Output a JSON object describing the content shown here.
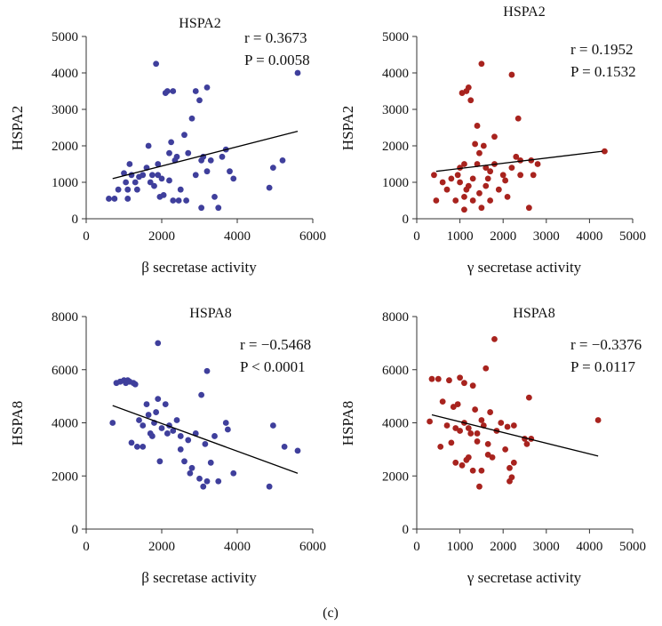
{
  "figure_label": "(c)",
  "chart_data": [
    {
      "type": "scatter",
      "title": "HSPA2",
      "xlabel": "β secretase activity",
      "ylabel": "HSPA2",
      "xlim": [
        0,
        6000
      ],
      "ylim": [
        0,
        5000
      ],
      "xticks": [
        "0",
        "2000",
        "4000",
        "6000"
      ],
      "yticks": [
        "0",
        "1000",
        "2000",
        "3000",
        "4000",
        "5000"
      ],
      "stats": {
        "r": "r = 0.3673",
        "p": "P = 0.0058"
      },
      "color": "#3f3f9c",
      "trendline": {
        "x": [
          700,
          5600
        ],
        "y": [
          1100,
          2400
        ]
      },
      "points": [
        [
          600,
          550
        ],
        [
          750,
          550
        ],
        [
          850,
          800
        ],
        [
          1000,
          1250
        ],
        [
          1050,
          1000
        ],
        [
          1100,
          550
        ],
        [
          1100,
          800
        ],
        [
          1150,
          1500
        ],
        [
          1200,
          1200
        ],
        [
          1300,
          1000
        ],
        [
          1350,
          800
        ],
        [
          1400,
          1150
        ],
        [
          1500,
          1200
        ],
        [
          1600,
          1400
        ],
        [
          1650,
          2000
        ],
        [
          1700,
          1000
        ],
        [
          1750,
          1200
        ],
        [
          1800,
          900
        ],
        [
          1850,
          4250
        ],
        [
          1900,
          1200
        ],
        [
          1900,
          1500
        ],
        [
          1950,
          600
        ],
        [
          2000,
          1100
        ],
        [
          2050,
          650
        ],
        [
          2100,
          3450
        ],
        [
          2150,
          3500
        ],
        [
          2200,
          1050
        ],
        [
          2200,
          1800
        ],
        [
          2250,
          2100
        ],
        [
          2300,
          3500
        ],
        [
          2350,
          1600
        ],
        [
          2400,
          1700
        ],
        [
          2450,
          500
        ],
        [
          2500,
          800
        ],
        [
          2600,
          2300
        ],
        [
          2650,
          500
        ],
        [
          2700,
          1800
        ],
        [
          2800,
          2750
        ],
        [
          2900,
          1200
        ],
        [
          2900,
          3500
        ],
        [
          3000,
          3250
        ],
        [
          3050,
          1600
        ],
        [
          3100,
          1700
        ],
        [
          3200,
          1300
        ],
        [
          3200,
          3600
        ],
        [
          3300,
          1600
        ],
        [
          3400,
          600
        ],
        [
          3500,
          300
        ],
        [
          3600,
          1700
        ],
        [
          3700,
          1900
        ],
        [
          3800,
          1300
        ],
        [
          3900,
          1100
        ],
        [
          4850,
          850
        ],
        [
          4950,
          1400
        ],
        [
          5200,
          1600
        ],
        [
          5600,
          4000
        ],
        [
          3050,
          300
        ],
        [
          2300,
          500
        ]
      ]
    },
    {
      "type": "scatter",
      "title": "HSPA2",
      "xlabel": "γ secretase activity",
      "ylabel": "HSPA2",
      "xlim": [
        0,
        5000
      ],
      "ylim": [
        0,
        5000
      ],
      "xticks": [
        "0",
        "1000",
        "2000",
        "3000",
        "4000",
        "5000"
      ],
      "yticks": [
        "0",
        "1000",
        "2000",
        "3000",
        "4000",
        "5000"
      ],
      "stats": {
        "r": "r = 0.1952",
        "p": "P = 0.1532"
      },
      "color": "#a8231e",
      "trendline": {
        "x": [
          450,
          4300
        ],
        "y": [
          1300,
          1850
        ]
      },
      "points": [
        [
          400,
          1200
        ],
        [
          450,
          500
        ],
        [
          600,
          1000
        ],
        [
          700,
          800
        ],
        [
          800,
          1100
        ],
        [
          900,
          500
        ],
        [
          950,
          1200
        ],
        [
          1000,
          1000
        ],
        [
          1000,
          1400
        ],
        [
          1050,
          3450
        ],
        [
          1100,
          1500
        ],
        [
          1100,
          600
        ],
        [
          1150,
          3500
        ],
        [
          1150,
          800
        ],
        [
          1200,
          900
        ],
        [
          1200,
          3600
        ],
        [
          1250,
          3250
        ],
        [
          1300,
          1100
        ],
        [
          1300,
          500
        ],
        [
          1350,
          2050
        ],
        [
          1400,
          1500
        ],
        [
          1400,
          2550
        ],
        [
          1450,
          700
        ],
        [
          1450,
          1800
        ],
        [
          1500,
          4250
        ],
        [
          1500,
          300
        ],
        [
          1550,
          2000
        ],
        [
          1600,
          1400
        ],
        [
          1600,
          900
        ],
        [
          1650,
          1100
        ],
        [
          1700,
          1300
        ],
        [
          1700,
          500
        ],
        [
          1800,
          1500
        ],
        [
          1800,
          2250
        ],
        [
          1900,
          800
        ],
        [
          2000,
          1200
        ],
        [
          2100,
          600
        ],
        [
          2200,
          3950
        ],
        [
          2200,
          1400
        ],
        [
          2300,
          1700
        ],
        [
          2350,
          2750
        ],
        [
          2400,
          1200
        ],
        [
          2400,
          1600
        ],
        [
          2600,
          300
        ],
        [
          2650,
          1600
        ],
        [
          2700,
          1200
        ],
        [
          2800,
          1500
        ],
        [
          4350,
          1850
        ],
        [
          1100,
          250
        ],
        [
          2050,
          1050
        ]
      ]
    },
    {
      "type": "scatter",
      "title": "HSPA8",
      "xlabel": "β secretase activity",
      "ylabel": "HSPA8",
      "xlim": [
        0,
        6000
      ],
      "ylim": [
        0,
        8000
      ],
      "xticks": [
        "0",
        "2000",
        "4000",
        "6000"
      ],
      "yticks": [
        "0",
        "2000",
        "4000",
        "6000",
        "8000"
      ],
      "stats": {
        "r": "r = −0.5468",
        "p": "P < 0.0001"
      },
      "color": "#3f3f9c",
      "trendline": {
        "x": [
          700,
          5600
        ],
        "y": [
          4650,
          2100
        ]
      },
      "points": [
        [
          700,
          4000
        ],
        [
          800,
          5500
        ],
        [
          900,
          5550
        ],
        [
          1000,
          5600
        ],
        [
          1050,
          5500
        ],
        [
          1100,
          5600
        ],
        [
          1150,
          5550
        ],
        [
          1200,
          3250
        ],
        [
          1250,
          5500
        ],
        [
          1300,
          5450
        ],
        [
          1350,
          3100
        ],
        [
          1400,
          4100
        ],
        [
          1500,
          3900
        ],
        [
          1600,
          4700
        ],
        [
          1650,
          4300
        ],
        [
          1700,
          3600
        ],
        [
          1750,
          3500
        ],
        [
          1800,
          4000
        ],
        [
          1850,
          4400
        ],
        [
          1900,
          7000
        ],
        [
          1900,
          4900
        ],
        [
          1950,
          2550
        ],
        [
          2000,
          3800
        ],
        [
          2100,
          4700
        ],
        [
          2150,
          3600
        ],
        [
          2200,
          3900
        ],
        [
          2300,
          3700
        ],
        [
          2400,
          4100
        ],
        [
          2500,
          3500
        ],
        [
          2600,
          2550
        ],
        [
          2700,
          3350
        ],
        [
          2750,
          2100
        ],
        [
          2800,
          2300
        ],
        [
          2900,
          3600
        ],
        [
          3000,
          1900
        ],
        [
          3050,
          5050
        ],
        [
          3100,
          1600
        ],
        [
          3150,
          3200
        ],
        [
          3200,
          5950
        ],
        [
          3300,
          2500
        ],
        [
          3400,
          3500
        ],
        [
          3500,
          1800
        ],
        [
          3700,
          4000
        ],
        [
          3750,
          3750
        ],
        [
          3900,
          2100
        ],
        [
          4850,
          1600
        ],
        [
          4950,
          3900
        ],
        [
          5250,
          3100
        ],
        [
          5600,
          2950
        ],
        [
          3200,
          1800
        ],
        [
          2500,
          3000
        ],
        [
          1500,
          3100
        ]
      ]
    },
    {
      "type": "scatter",
      "title": "HSPA8",
      "xlabel": "γ secretase activity",
      "ylabel": "HSPA8",
      "xlim": [
        0,
        5000
      ],
      "ylim": [
        0,
        8000
      ],
      "xticks": [
        "0",
        "1000",
        "2000",
        "3000",
        "4000",
        "5000"
      ],
      "yticks": [
        "0",
        "2000",
        "4000",
        "6000",
        "8000"
      ],
      "stats": {
        "r": "r = −0.3376",
        "p": "P = 0.0117"
      },
      "color": "#a8231e",
      "trendline": {
        "x": [
          350,
          4200
        ],
        "y": [
          4300,
          2750
        ]
      },
      "points": [
        [
          300,
          4050
        ],
        [
          350,
          5650
        ],
        [
          500,
          5650
        ],
        [
          550,
          3100
        ],
        [
          600,
          4800
        ],
        [
          700,
          3900
        ],
        [
          750,
          5600
        ],
        [
          800,
          3250
        ],
        [
          850,
          4600
        ],
        [
          900,
          3800
        ],
        [
          950,
          4700
        ],
        [
          1000,
          5700
        ],
        [
          1000,
          3700
        ],
        [
          1050,
          2400
        ],
        [
          1100,
          5500
        ],
        [
          1100,
          4000
        ],
        [
          1150,
          2600
        ],
        [
          1200,
          3800
        ],
        [
          1250,
          3600
        ],
        [
          1300,
          5400
        ],
        [
          1300,
          2200
        ],
        [
          1350,
          4500
        ],
        [
          1400,
          3300
        ],
        [
          1400,
          3600
        ],
        [
          1450,
          1600
        ],
        [
          1500,
          4100
        ],
        [
          1500,
          2200
        ],
        [
          1550,
          3900
        ],
        [
          1600,
          6050
        ],
        [
          1650,
          3200
        ],
        [
          1700,
          4400
        ],
        [
          1750,
          2700
        ],
        [
          1800,
          7150
        ],
        [
          1850,
          3700
        ],
        [
          1950,
          4000
        ],
        [
          2050,
          3000
        ],
        [
          2100,
          3850
        ],
        [
          2150,
          1800
        ],
        [
          2150,
          2300
        ],
        [
          2200,
          1950
        ],
        [
          2250,
          2500
        ],
        [
          2250,
          3900
        ],
        [
          2500,
          3400
        ],
        [
          2550,
          3200
        ],
        [
          2600,
          4950
        ],
        [
          2650,
          3400
        ],
        [
          4200,
          4100
        ],
        [
          900,
          2500
        ],
        [
          1200,
          2700
        ],
        [
          1650,
          2800
        ]
      ]
    }
  ]
}
